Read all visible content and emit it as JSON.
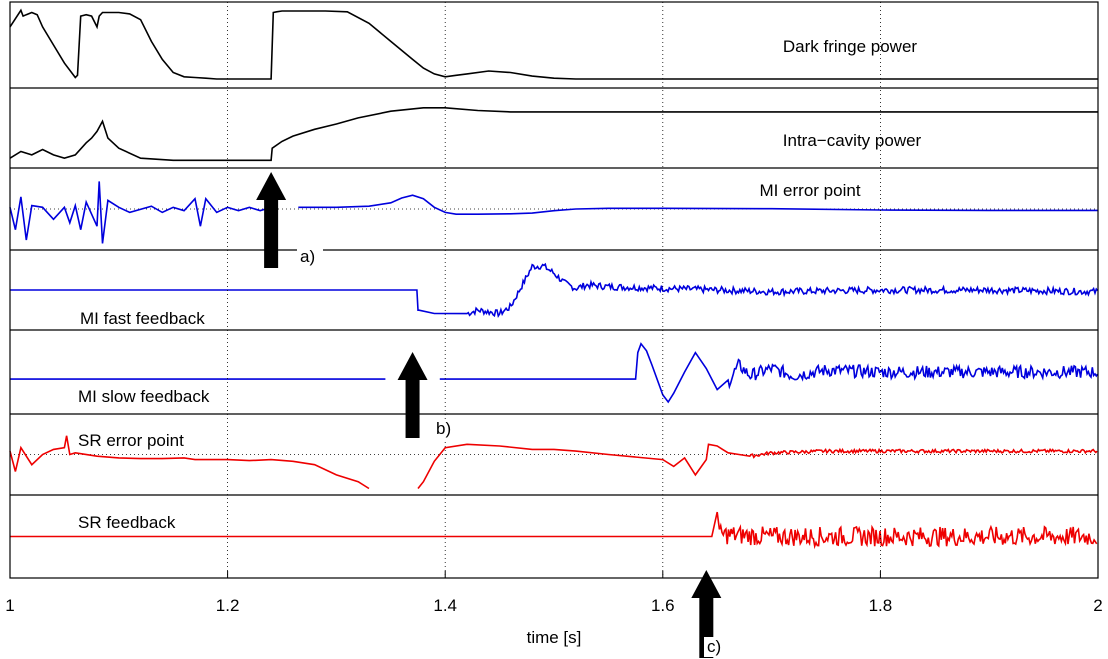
{
  "chart_data": {
    "type": "line",
    "xlabel": "time [s]",
    "xlim": [
      1,
      2
    ],
    "xticks": [
      1,
      1.2,
      1.4,
      1.6,
      1.8,
      2
    ],
    "xtick_labels": [
      "1",
      "1.2",
      "1.4",
      "1.6",
      "1.8",
      "2"
    ],
    "grid": true,
    "panels": [
      {
        "name": "Dark fringe power",
        "label": "Dark fringe power",
        "color": "#000000",
        "ylim": [
          0,
          1
        ],
        "dotted_mid": false,
        "x": [
          1.0,
          1.01,
          1.012,
          1.015,
          1.02,
          1.025,
          1.03,
          1.04,
          1.05,
          1.06,
          1.062,
          1.065,
          1.07,
          1.075,
          1.08,
          1.082,
          1.085,
          1.09,
          1.1,
          1.11,
          1.12,
          1.13,
          1.14,
          1.15,
          1.16,
          1.17,
          1.18,
          1.19,
          1.2,
          1.22,
          1.24,
          1.242,
          1.245,
          1.25,
          1.27,
          1.29,
          1.31,
          1.33,
          1.35,
          1.37,
          1.38,
          1.39,
          1.4,
          1.41,
          1.42,
          1.44,
          1.46,
          1.48,
          1.5,
          1.52,
          1.55,
          1.6,
          1.7,
          1.8,
          1.9,
          2.0
        ],
        "y": [
          0.75,
          0.98,
          0.9,
          0.92,
          0.95,
          0.92,
          0.75,
          0.5,
          0.25,
          0.05,
          0.08,
          0.9,
          0.92,
          0.9,
          0.75,
          0.9,
          0.95,
          0.95,
          0.95,
          0.93,
          0.85,
          0.55,
          0.3,
          0.12,
          0.06,
          0.05,
          0.04,
          0.03,
          0.03,
          0.03,
          0.03,
          0.95,
          0.96,
          0.97,
          0.97,
          0.97,
          0.96,
          0.8,
          0.55,
          0.3,
          0.18,
          0.1,
          0.06,
          0.08,
          0.1,
          0.14,
          0.12,
          0.07,
          0.04,
          0.03,
          0.03,
          0.03,
          0.03,
          0.03,
          0.03,
          0.03
        ]
      },
      {
        "name": "Intra-cavity power",
        "label": "Intra−cavity power",
        "color": "#000000",
        "ylim": [
          0,
          1
        ],
        "dotted_mid": false,
        "x": [
          1.0,
          1.01,
          1.02,
          1.03,
          1.04,
          1.05,
          1.06,
          1.07,
          1.075,
          1.08,
          1.085,
          1.09,
          1.1,
          1.12,
          1.15,
          1.18,
          1.2,
          1.22,
          1.24,
          1.241,
          1.25,
          1.26,
          1.28,
          1.3,
          1.32,
          1.35,
          1.38,
          1.4,
          1.43,
          1.46,
          1.5,
          1.6,
          1.7,
          1.8,
          1.9,
          2.0
        ],
        "y": [
          0.05,
          0.15,
          0.1,
          0.18,
          0.1,
          0.05,
          0.1,
          0.28,
          0.35,
          0.45,
          0.6,
          0.35,
          0.2,
          0.05,
          0.02,
          0.02,
          0.02,
          0.02,
          0.02,
          0.2,
          0.3,
          0.38,
          0.48,
          0.56,
          0.65,
          0.75,
          0.8,
          0.8,
          0.76,
          0.74,
          0.74,
          0.74,
          0.74,
          0.74,
          0.74,
          0.74
        ]
      },
      {
        "name": "MI error point",
        "label": "MI error point",
        "color": "#0000dd",
        "ylim": [
          -1,
          1
        ],
        "dotted_mid": true,
        "x": [
          1.0,
          1.005,
          1.01,
          1.015,
          1.02,
          1.03,
          1.04,
          1.05,
          1.055,
          1.06,
          1.065,
          1.07,
          1.08,
          1.082,
          1.085,
          1.09,
          1.1,
          1.11,
          1.13,
          1.14,
          1.15,
          1.16,
          1.17,
          1.175,
          1.18,
          1.19,
          1.2,
          1.21,
          1.22,
          1.23,
          1.24
        ],
        "y": [
          0.05,
          -0.6,
          0.35,
          -0.9,
          0.1,
          0.05,
          -0.3,
          0.05,
          -0.4,
          0.1,
          -0.6,
          0.2,
          -0.5,
          0.8,
          -1.0,
          0.25,
          0.05,
          -0.1,
          0.08,
          -0.1,
          0.05,
          -0.05,
          0.3,
          -0.5,
          0.3,
          -0.1,
          0.05,
          -0.05,
          0.05,
          -0.05,
          0.05
        ],
        "x2": [
          1.265,
          1.3,
          1.33,
          1.35,
          1.36,
          1.37,
          1.38,
          1.39,
          1.4,
          1.41,
          1.43,
          1.46,
          1.48,
          1.5,
          1.52,
          1.55,
          1.6,
          1.7,
          1.8,
          1.9,
          2.0
        ],
        "y2": [
          0.05,
          0.05,
          0.08,
          0.18,
          0.32,
          0.4,
          0.3,
          0.05,
          -0.1,
          -0.15,
          -0.15,
          -0.14,
          -0.12,
          -0.05,
          0.0,
          0.02,
          0.02,
          0.01,
          -0.03,
          -0.04,
          -0.04
        ]
      },
      {
        "name": "MI fast feedback",
        "label": "MI fast feedback",
        "color": "#0000dd",
        "ylim": [
          -1,
          1
        ],
        "dotted_mid": false,
        "x": [
          1.0,
          1.374,
          1.375,
          1.376,
          1.39,
          1.42,
          1.43,
          1.44,
          1.45,
          1.46,
          1.47,
          1.48,
          1.49,
          1.5,
          1.51,
          1.52,
          1.53,
          1.55,
          1.6,
          1.7,
          1.8,
          1.9,
          2.0
        ],
        "y": [
          0.0,
          0.0,
          -0.6,
          -0.6,
          -0.7,
          -0.7,
          -0.6,
          -0.65,
          -0.7,
          -0.5,
          0.1,
          0.7,
          0.72,
          0.5,
          0.2,
          0.05,
          0.15,
          0.1,
          0.05,
          -0.05,
          0.0,
          0.0,
          -0.05
        ],
        "noise": {
          "from": 1.42,
          "amp": 0.1
        }
      },
      {
        "name": "MI slow feedback",
        "label": "MI slow feedback",
        "color": "#0000dd",
        "ylim": [
          -1,
          1
        ],
        "dotted_mid": false,
        "x": [
          1.0,
          1.345
        ],
        "y": [
          -0.2,
          -0.2
        ],
        "x2": [
          1.395,
          1.575,
          1.577,
          1.58,
          1.585,
          1.59,
          1.6,
          1.605,
          1.61,
          1.62,
          1.63,
          1.64,
          1.65,
          1.66,
          1.67,
          1.68,
          1.7,
          1.72,
          1.75,
          1.8,
          1.9,
          2.0
        ],
        "y2": [
          -0.2,
          -0.2,
          0.55,
          0.8,
          0.6,
          0.2,
          -0.65,
          -0.85,
          -0.6,
          0.0,
          0.55,
          0.1,
          -0.5,
          -0.3,
          0.2,
          -0.1,
          0.1,
          -0.1,
          0.05,
          0.0,
          0.0,
          0.0
        ],
        "noise": {
          "from": 1.66,
          "amp": 0.18
        }
      },
      {
        "name": "SR error point",
        "label": "SR error point",
        "color": "#ee0000",
        "ylim": [
          -1,
          1
        ],
        "dotted_mid": true,
        "x": [
          1.0,
          1.005,
          1.01,
          1.02,
          1.03,
          1.04,
          1.05,
          1.052,
          1.055,
          1.06,
          1.08,
          1.1,
          1.12,
          1.14,
          1.16,
          1.17,
          1.18,
          1.2,
          1.22,
          1.24,
          1.26,
          1.28,
          1.3,
          1.32,
          1.33
        ],
        "y": [
          0.1,
          -0.5,
          0.2,
          -0.3,
          0.0,
          0.15,
          0.2,
          0.55,
          0.0,
          0.05,
          -0.05,
          -0.1,
          -0.12,
          -0.12,
          -0.1,
          -0.15,
          -0.15,
          -0.15,
          -0.18,
          -0.15,
          -0.2,
          -0.3,
          -0.6,
          -0.8,
          -1.0
        ],
        "x2": [
          1.375,
          1.38,
          1.39,
          1.4,
          1.42,
          1.45,
          1.48,
          1.5,
          1.52,
          1.55,
          1.6,
          1.61,
          1.62,
          1.63,
          1.64,
          1.642,
          1.65,
          1.655,
          1.66,
          1.67,
          1.68,
          1.7,
          1.75,
          1.8,
          1.9,
          2.0
        ],
        "y2": [
          -1.0,
          -0.8,
          -0.2,
          0.2,
          0.3,
          0.25,
          0.15,
          0.15,
          0.1,
          0.0,
          -0.15,
          -0.35,
          -0.1,
          -0.6,
          -0.15,
          0.3,
          0.25,
          0.15,
          0.05,
          0.0,
          -0.05,
          0.05,
          0.1,
          0.1,
          0.1,
          0.1
        ],
        "noise": {
          "from": 1.68,
          "amp": 0.05
        }
      },
      {
        "name": "SR feedback",
        "label": "SR feedback",
        "color": "#ee0000",
        "ylim": [
          -1,
          1
        ],
        "dotted_mid": false,
        "x": [
          1.0,
          1.644,
          1.645,
          1.65,
          1.652,
          1.66,
          1.7,
          1.8,
          1.9,
          2.0
        ],
        "y": [
          0.0,
          0.0,
          0.0,
          0.7,
          0.05,
          0.05,
          0.0,
          0.0,
          0.0,
          0.0
        ],
        "noise": {
          "from": 1.652,
          "amp": 0.28
        }
      }
    ],
    "annotations": [
      {
        "label": "a)",
        "x": 1.24,
        "color": "#000000"
      },
      {
        "label": "b)",
        "x": 1.37,
        "color": "#000000"
      },
      {
        "label": "c)",
        "x": 1.64,
        "color": "#000000"
      }
    ]
  }
}
